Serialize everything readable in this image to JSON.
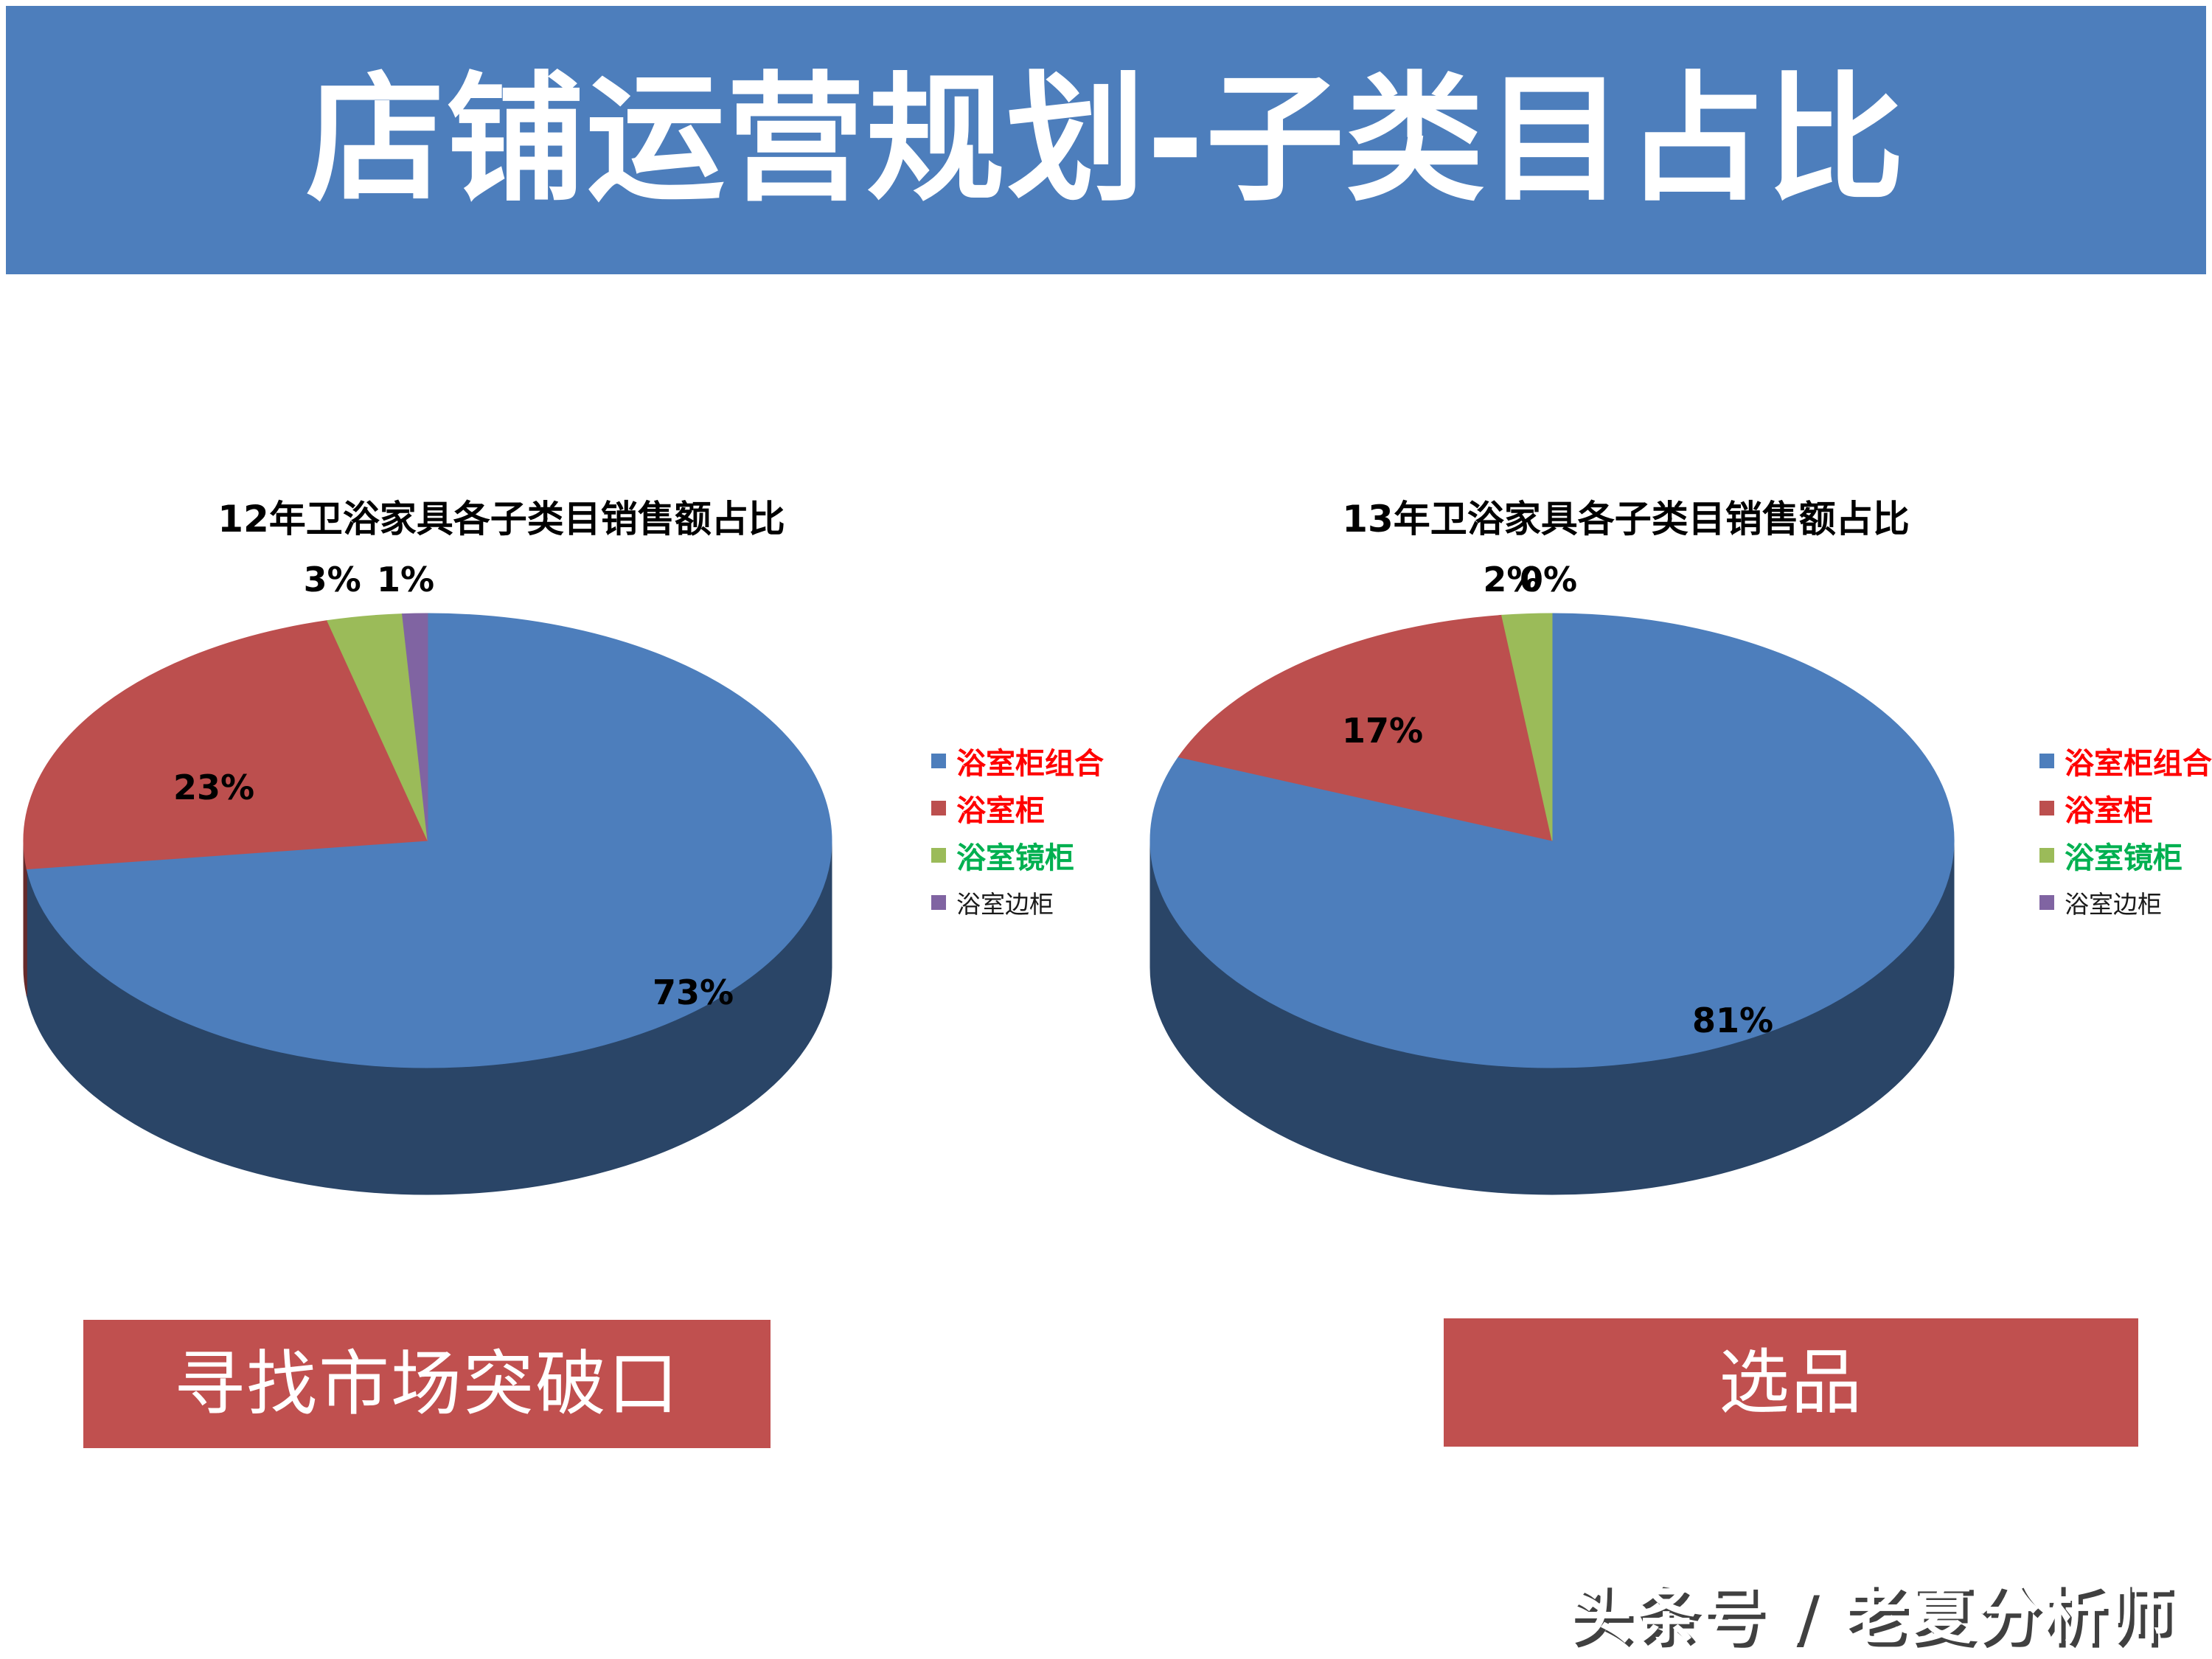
{
  "header": {
    "title": "店铺运营规划-子类目占比",
    "bg_color": "#4D7EBC",
    "text_color": "#FFFFFF"
  },
  "chart_data": [
    {
      "type": "pie",
      "style": "3d",
      "title": "12年卫浴家具各子类目销售额占比",
      "categories": [
        "浴室柜组合",
        "浴室柜",
        "浴室镜柜",
        "浴室边柜"
      ],
      "values": [
        73,
        23,
        3,
        1
      ],
      "data_labels": [
        "73%",
        "23%",
        "3%",
        "1%"
      ],
      "colors": [
        "#4D7EBC",
        "#BC4F4E",
        "#9BBB59",
        "#8064A2"
      ],
      "legend": {
        "position": "right",
        "entries": [
          {
            "label": "浴室柜组合",
            "swatch": "#4D7EBC",
            "text_color": "#FF0000",
            "emphasis": true
          },
          {
            "label": "浴室柜",
            "swatch": "#BC4F4E",
            "text_color": "#FF0000",
            "emphasis": true
          },
          {
            "label": "浴室镜柜",
            "swatch": "#9BBB59",
            "text_color": "#00B050",
            "emphasis": true
          },
          {
            "label": "浴室边柜",
            "swatch": "#8064A2",
            "text_color": "#1A1A1A",
            "emphasis": false
          }
        ]
      }
    },
    {
      "type": "pie",
      "style": "3d",
      "title": "13年卫浴家具各子类目销售额占比",
      "categories": [
        "浴室柜组合",
        "浴室柜",
        "浴室镜柜",
        "浴室边柜"
      ],
      "values": [
        81,
        17,
        2,
        0
      ],
      "data_labels": [
        "81%",
        "17%",
        "2%",
        "0%"
      ],
      "colors": [
        "#4D7EBC",
        "#BC4F4E",
        "#9BBB59",
        "#8064A2"
      ],
      "legend": {
        "position": "right",
        "entries": [
          {
            "label": "浴室柜组合",
            "swatch": "#4D7EBC",
            "text_color": "#FF0000",
            "emphasis": true
          },
          {
            "label": "浴室柜",
            "swatch": "#BC4F4E",
            "text_color": "#FF0000",
            "emphasis": true
          },
          {
            "label": "浴室镜柜",
            "swatch": "#9BBB59",
            "text_color": "#00B050",
            "emphasis": true
          },
          {
            "label": "浴室边柜",
            "swatch": "#8064A2",
            "text_color": "#1A1A1A",
            "emphasis": false
          }
        ]
      }
    }
  ],
  "callouts": {
    "bg_color": "#C0504F",
    "text_color": "#FFFFFF",
    "items": [
      {
        "label": "寻找市场突破口"
      },
      {
        "label": "选品"
      }
    ]
  },
  "watermark": {
    "text": "头条号 / 老夏分析师"
  }
}
